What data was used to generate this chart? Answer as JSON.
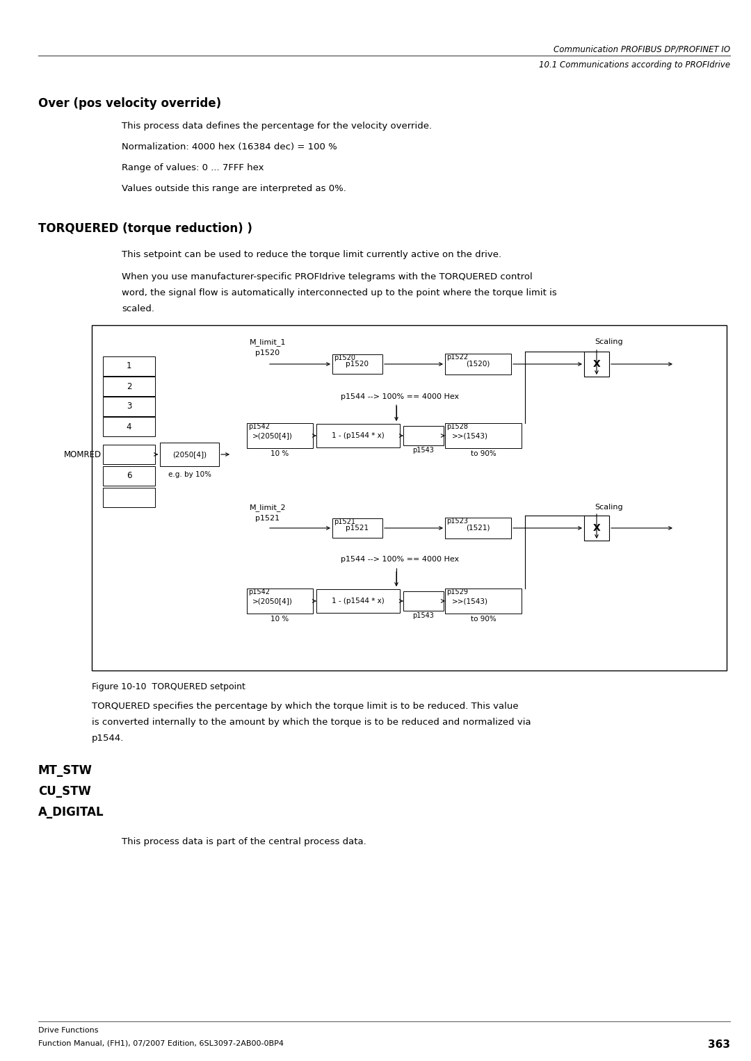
{
  "header_line1": "Communication PROFIBUS DP/PROFINET IO",
  "header_line2": "10.1 Communications according to PROFIdrive",
  "section1_title": "Over (pos velocity override)",
  "section1_para1": "This process data defines the percentage for the velocity override.",
  "section1_para2": "Normalization: 4000 hex (16384 dec) = 100 %",
  "section1_para3": "Range of values: 0 ... 7FFF hex",
  "section1_para4": "Values outside this range are interpreted as 0%.",
  "section2_title": "TORQUERED (torque reduction) )",
  "section2_para1": "This setpoint can be used to reduce the torque limit currently active on the drive.",
  "section2_para2_l1": "When you use manufacturer-specific PROFIdrive telegrams with the TORQUERED control",
  "section2_para2_l2": "word, the signal flow is automatically interconnected up to the point where the torque limit is",
  "section2_para2_l3": "scaled.",
  "figure_caption": "Figure 10-10  TORQUERED setpoint",
  "section2_para3_l1": "TORQUERED specifies the percentage by which the torque limit is to be reduced. This value",
  "section2_para3_l2": "is converted internally to the amount by which the torque is to be reduced and normalized via",
  "section2_para3_l3": "p1544.",
  "section3_title_l1": "MT_STW",
  "section3_title_l2": "CU_STW",
  "section3_title_l3": "A_DIGITAL",
  "section3_para1": "This process data is part of the central process data.",
  "footer_line1": "Drive Functions",
  "footer_line2": "Function Manual, (FH1), 07/2007 Edition, 6SL3097-2AB00-0BP4",
  "footer_page": "363",
  "bg_color": "#ffffff"
}
